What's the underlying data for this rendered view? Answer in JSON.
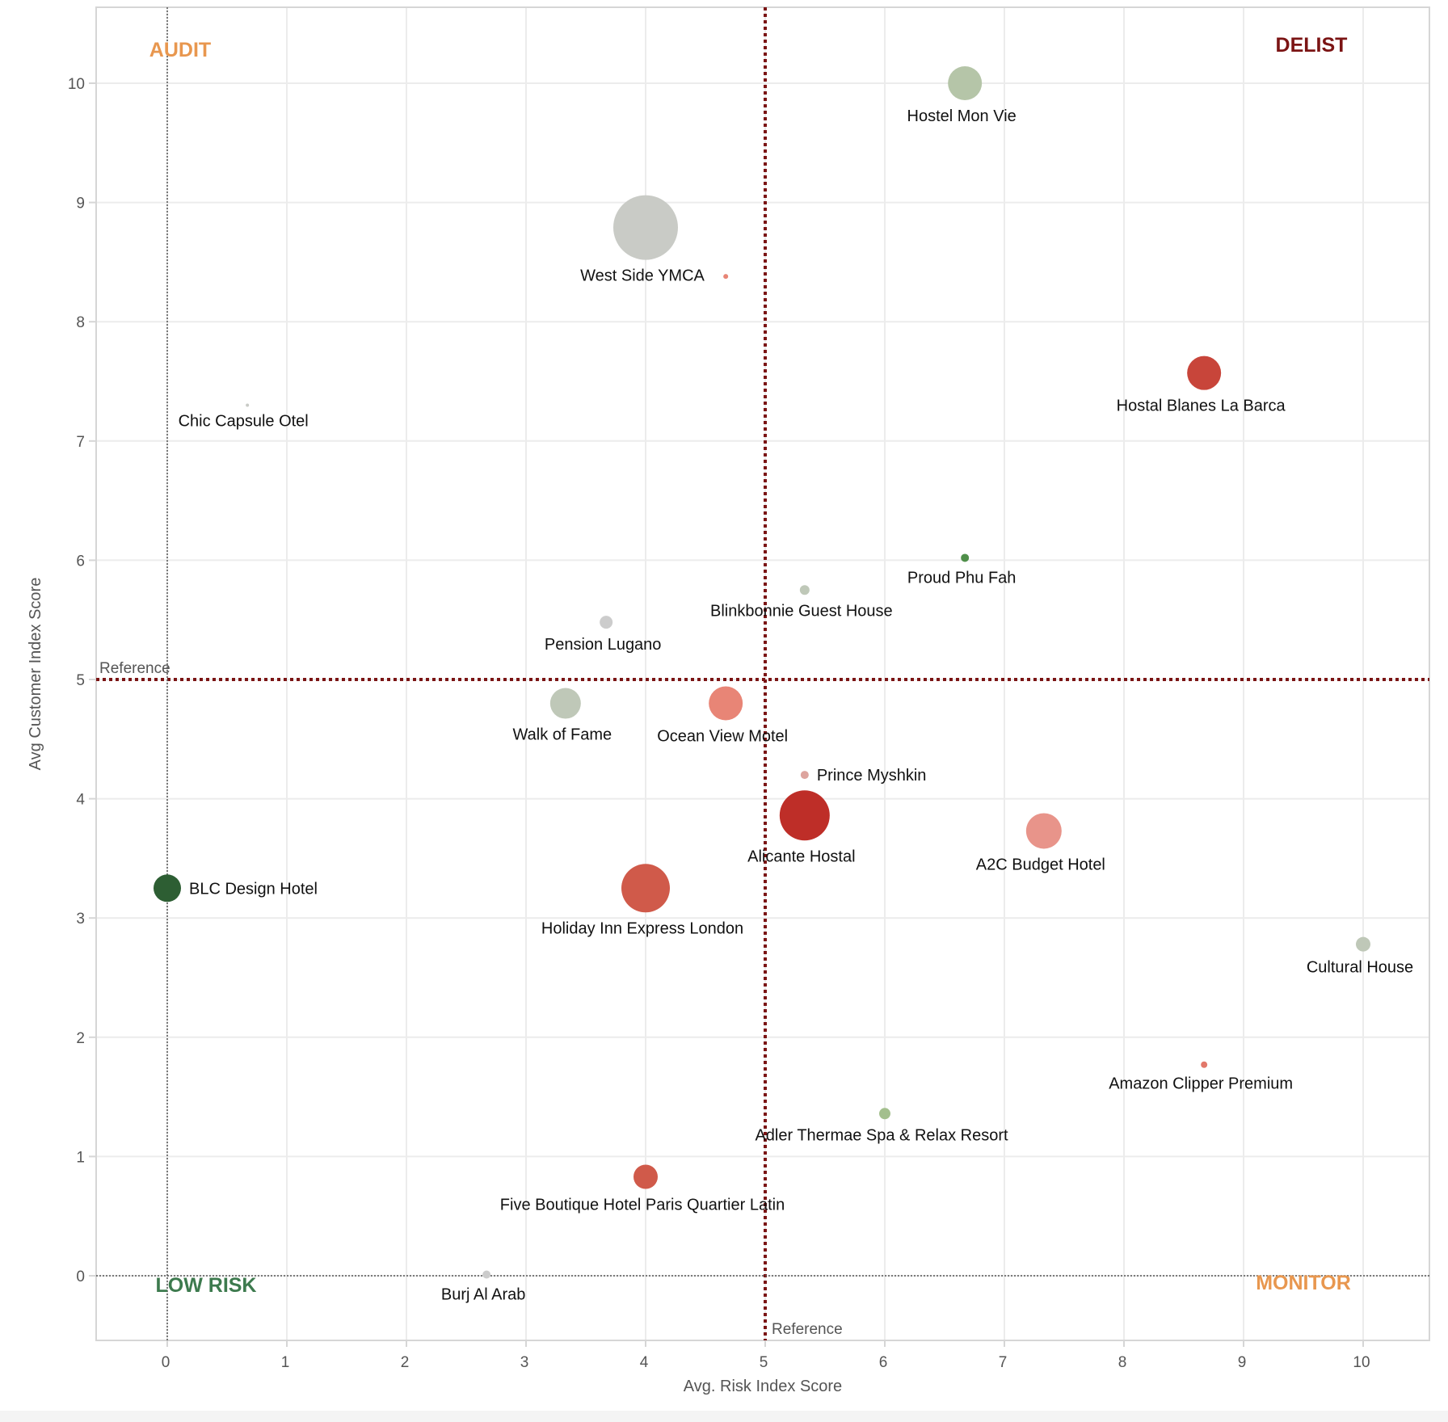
{
  "chart_data": {
    "type": "scatter",
    "subtype": "bubble",
    "title": "",
    "xlabel": "Avg. Risk Index Score",
    "ylabel": "Avg Customer Index Score",
    "xlim": [
      -0.6,
      10.6
    ],
    "ylim": [
      -0.55,
      10.63
    ],
    "x_ticks": [
      0,
      1,
      2,
      3,
      4,
      5,
      6,
      7,
      8,
      9,
      10
    ],
    "y_ticks": [
      0,
      1,
      2,
      3,
      4,
      5,
      6,
      7,
      8,
      9,
      10
    ],
    "grid": true,
    "reference_lines": [
      {
        "axis": "x",
        "value": 5,
        "label": "Reference",
        "color": "#7b1414",
        "style": "dotted-heavy"
      },
      {
        "axis": "y",
        "value": 5,
        "label": "Reference",
        "color": "#7b1414",
        "style": "dotted-heavy"
      },
      {
        "axis": "x",
        "value": 0,
        "label": "",
        "color": "#555555",
        "style": "dotted-light"
      },
      {
        "axis": "y",
        "value": 0,
        "label": "",
        "color": "#555555",
        "style": "dotted-light"
      }
    ],
    "quadrant_labels": [
      {
        "text": "AUDIT",
        "position": "top-left",
        "color": "#e8974f"
      },
      {
        "text": "DELIST",
        "position": "top-right",
        "color": "#7b1414"
      },
      {
        "text": "LOW RISK",
        "position": "bottom-left",
        "color": "#3d7a4e"
      },
      {
        "text": "MONITOR",
        "position": "bottom-right",
        "color": "#e8974f"
      }
    ],
    "points": [
      {
        "name": "Hostel Mon Vie",
        "x": 6.67,
        "y": 10.0,
        "size": 21,
        "color": "#b5c5a8",
        "label_pos": "below"
      },
      {
        "name": "West Side YMCA",
        "x": 4.0,
        "y": 8.79,
        "size": 40,
        "color": "#c9cbc6",
        "label_pos": "below"
      },
      {
        "name": "",
        "x": 4.67,
        "y": 8.38,
        "size": 3,
        "color": "#e88576",
        "label_pos": "none"
      },
      {
        "name": "Hostal Blanes La Barca",
        "x": 8.67,
        "y": 7.57,
        "size": 21,
        "color": "#c8453a",
        "label_pos": "below"
      },
      {
        "name": "Chic Capsule Otel",
        "x": 0.67,
        "y": 7.3,
        "size": 2,
        "color": "#c9cbc6",
        "label_pos": "below"
      },
      {
        "name": "Proud Phu Fah",
        "x": 6.67,
        "y": 6.02,
        "size": 5,
        "color": "#4f8f4a",
        "label_pos": "below"
      },
      {
        "name": "Blinkbonnie Guest House",
        "x": 5.33,
        "y": 5.75,
        "size": 6,
        "color": "#bfc8b8",
        "label_pos": "below"
      },
      {
        "name": "Pension Lugano",
        "x": 3.67,
        "y": 5.48,
        "size": 8,
        "color": "#cccccc",
        "label_pos": "below"
      },
      {
        "name": "Walk of Fame",
        "x": 3.33,
        "y": 4.8,
        "size": 19,
        "color": "#bfc8b8",
        "label_pos": "below"
      },
      {
        "name": "Ocean View Motel",
        "x": 4.67,
        "y": 4.8,
        "size": 21,
        "color": "#e88576",
        "label_pos": "below"
      },
      {
        "name": "Prince Myshkin",
        "x": 5.33,
        "y": 4.2,
        "size": 5,
        "color": "#dda49e",
        "label_pos": "right"
      },
      {
        "name": "Alicante Hostal",
        "x": 5.33,
        "y": 3.86,
        "size": 31,
        "color": "#be2e28",
        "label_pos": "below"
      },
      {
        "name": "A2C Budget Hotel",
        "x": 7.33,
        "y": 3.73,
        "size": 22,
        "color": "#e8948a",
        "label_pos": "below"
      },
      {
        "name": "BLC Design Hotel",
        "x": 0.0,
        "y": 3.25,
        "size": 17,
        "color": "#2d5e33",
        "label_pos": "right"
      },
      {
        "name": "Holiday Inn Express London",
        "x": 4.0,
        "y": 3.25,
        "size": 30,
        "color": "#d05a4a",
        "label_pos": "below"
      },
      {
        "name": "Cultural House",
        "x": 10.0,
        "y": 2.78,
        "size": 9,
        "color": "#bfc8b8",
        "label_pos": "below"
      },
      {
        "name": "Amazon Clipper Premium",
        "x": 8.67,
        "y": 1.77,
        "size": 4,
        "color": "#e2786a",
        "label_pos": "below"
      },
      {
        "name": "Adler Thermae Spa & Relax Resort",
        "x": 6.0,
        "y": 1.36,
        "size": 7,
        "color": "#a3bf8d",
        "label_pos": "below"
      },
      {
        "name": "Five Boutique Hotel Paris Quartier Latin",
        "x": 4.0,
        "y": 0.83,
        "size": 15,
        "color": "#d05a4a",
        "label_pos": "below"
      },
      {
        "name": "Burj Al Arab",
        "x": 2.67,
        "y": 0.01,
        "size": 5,
        "color": "#cccccc",
        "label_pos": "below"
      }
    ]
  }
}
